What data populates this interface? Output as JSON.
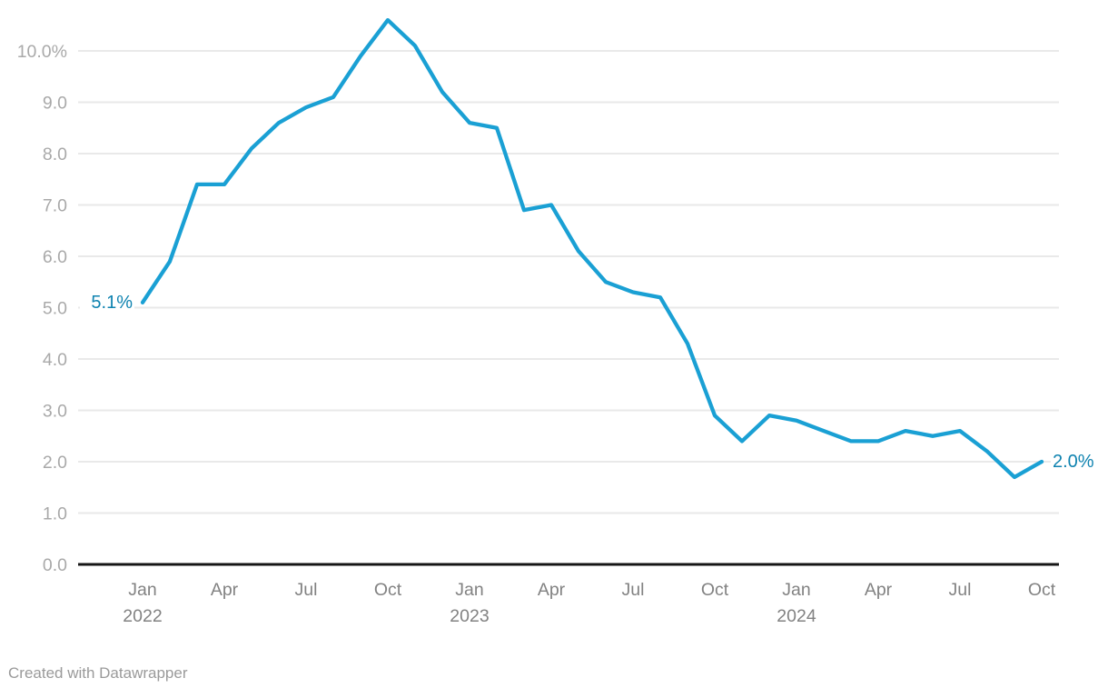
{
  "chart_data": {
    "type": "line",
    "title": "",
    "xlabel": "",
    "ylabel": "",
    "unit": "%",
    "x": [
      "Jan 2022",
      "Feb 2022",
      "Mar 2022",
      "Apr 2022",
      "May 2022",
      "Jun 2022",
      "Jul 2022",
      "Aug 2022",
      "Sep 2022",
      "Oct 2022",
      "Nov 2022",
      "Dec 2022",
      "Jan 2023",
      "Feb 2023",
      "Mar 2023",
      "Apr 2023",
      "May 2023",
      "Jun 2023",
      "Jul 2023",
      "Aug 2023",
      "Sep 2023",
      "Oct 2023",
      "Nov 2023",
      "Dec 2023",
      "Jan 2024",
      "Feb 2024",
      "Mar 2024",
      "Apr 2024",
      "May 2024",
      "Jun 2024",
      "Jul 2024",
      "Aug 2024",
      "Sep 2024",
      "Oct 2024"
    ],
    "values": [
      5.1,
      5.9,
      7.4,
      7.4,
      8.1,
      8.6,
      8.9,
      9.1,
      9.9,
      10.6,
      10.1,
      9.2,
      8.6,
      8.5,
      6.9,
      7.0,
      6.1,
      5.5,
      5.3,
      5.2,
      4.3,
      2.9,
      2.4,
      2.9,
      2.8,
      2.6,
      2.4,
      2.4,
      2.6,
      2.5,
      2.6,
      2.2,
      1.7,
      2.0
    ],
    "start_label": "5.1%",
    "end_label": "2.0%",
    "ylim": [
      0,
      10.6
    ],
    "grid": true,
    "legend": "none",
    "y_ticks": [
      "0.0",
      "1.0",
      "2.0",
      "3.0",
      "4.0",
      "5.0",
      "6.0",
      "7.0",
      "8.0",
      "9.0",
      "10.0%"
    ],
    "x_ticks": [
      {
        "i": 0,
        "label": "Jan",
        "year": "2022"
      },
      {
        "i": 3,
        "label": "Apr"
      },
      {
        "i": 6,
        "label": "Jul"
      },
      {
        "i": 9,
        "label": "Oct"
      },
      {
        "i": 12,
        "label": "Jan",
        "year": "2023"
      },
      {
        "i": 15,
        "label": "Apr"
      },
      {
        "i": 18,
        "label": "Jul"
      },
      {
        "i": 21,
        "label": "Oct"
      },
      {
        "i": 24,
        "label": "Jan",
        "year": "2024"
      },
      {
        "i": 27,
        "label": "Apr"
      },
      {
        "i": 30,
        "label": "Jul"
      },
      {
        "i": 33,
        "label": "Oct"
      }
    ],
    "colors": {
      "line": "#1AA0D4",
      "value_label": "#0F83B0",
      "gridline": "#E9E9E9",
      "axis_line": "#161616",
      "y_tick_label": "#A9A9A9",
      "x_tick_label": "#828282"
    }
  },
  "footer": {
    "text": "Created with Datawrapper",
    "color": "#9A9A9A"
  }
}
